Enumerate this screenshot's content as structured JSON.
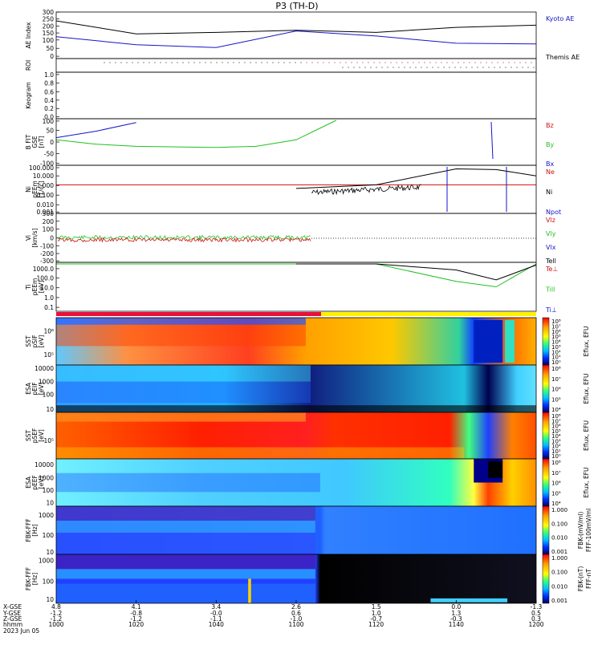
{
  "title": "P3 (TH-D)",
  "colors": {
    "kyoto": "#1515c8",
    "themis": "#000000",
    "bz": "#e01010",
    "by": "#20c020",
    "bx": "#1515c8",
    "ne": "#d01010",
    "ni": "#000000",
    "npot": "#1515c8",
    "vlz": "#d01010",
    "vly": "#20c020",
    "vlx": "#1515c8",
    "bar_red": "#e8103a",
    "bar_yellow": "#fff200"
  },
  "panels": [
    {
      "id": "ae",
      "ylabel": [
        "AE Index"
      ],
      "ticks": [
        "300",
        "250",
        "200",
        "150",
        "100",
        "50",
        "0"
      ],
      "legend": [
        {
          "text": "Kyoto AE",
          "color": "#1515c8"
        },
        {
          "text": "Themis AE",
          "color": "#000000"
        }
      ]
    },
    {
      "id": "roi",
      "ylabel": [
        "ROI"
      ],
      "ticks": [],
      "legend": []
    },
    {
      "id": "keogram",
      "ylabel": [
        "Keogram"
      ],
      "ticks": [
        "1.0",
        "0.8",
        "0.6",
        "0.4",
        "0.2",
        "0.0"
      ],
      "legend": []
    },
    {
      "id": "bfield",
      "ylabel": [
        "B FIT",
        "GSE",
        "[nT]"
      ],
      "ticks": [
        "100",
        "50",
        "0",
        "-50",
        "-100"
      ],
      "legend": [
        {
          "text": "Bz",
          "color": "#d01010"
        },
        {
          "text": "By",
          "color": "#20c020"
        },
        {
          "text": "Bx",
          "color": "#1515c8"
        }
      ]
    },
    {
      "id": "dens",
      "ylabel": [
        "Ni",
        "pEEm",
        "[1/cc]"
      ],
      "ticks": [
        "100.000",
        "10.000",
        "1.000",
        "0.100",
        "0.010",
        "0.001"
      ],
      "legend": [
        {
          "text": "Ne",
          "color": "#d01010"
        },
        {
          "text": "Ni",
          "color": "#000000"
        },
        {
          "text": "Npot",
          "color": "#1515c8"
        }
      ]
    },
    {
      "id": "vel",
      "ylabel": [
        "Vi",
        "[km/s]"
      ],
      "ticks": [
        "300",
        "200",
        "100",
        "0",
        "-100",
        "-200",
        "-300"
      ],
      "legend": [
        {
          "text": "Vlz",
          "color": "#d01010"
        },
        {
          "text": "Vly",
          "color": "#20c020"
        },
        {
          "text": "Vlx",
          "color": "#1515c8"
        },
        {
          "text": "Tell",
          "color": "#000000"
        }
      ]
    },
    {
      "id": "temp",
      "ylabel": [
        "Ti",
        "pEEm",
        "[eV]"
      ],
      "ticks": [
        "1000.0",
        "100.0",
        "10.0",
        "1.0",
        "0.1"
      ],
      "legend": [
        {
          "text": "Te⊥",
          "color": "#d01010"
        },
        {
          "text": "Till",
          "color": "#20c020"
        },
        {
          "text": "Ti⊥",
          "color": "#1515c8"
        }
      ]
    },
    {
      "id": "sst_i",
      "ylabel": [
        "SST",
        "pSIF",
        "[eV]"
      ],
      "ticks": [
        "10⁶",
        "10⁵"
      ],
      "legend": []
    },
    {
      "id": "esa_i",
      "ylabel": [
        "ESA",
        "pEIF",
        "[eV]"
      ],
      "ticks": [
        "10000",
        "1000",
        "100",
        "10"
      ],
      "legend": []
    },
    {
      "id": "sst_e",
      "ylabel": [
        "SST",
        "pSEF",
        "[eV]"
      ],
      "ticks": [
        "10⁵"
      ],
      "legend": []
    },
    {
      "id": "esa_e",
      "ylabel": [
        "ESA",
        "pEEF",
        "[eV]"
      ],
      "ticks": [
        "10000",
        "1000",
        "100",
        "10"
      ],
      "legend": []
    },
    {
      "id": "fbk1",
      "ylabel": [
        "FBK-FFF",
        "[Hz]"
      ],
      "ticks": [
        "1000",
        "100",
        "10"
      ],
      "legend": []
    },
    {
      "id": "fbk2",
      "ylabel": [
        "FBK-FFF",
        "[Hz]"
      ],
      "ticks": [
        "1000",
        "100",
        "10"
      ],
      "legend": []
    }
  ],
  "colorbars": [
    {
      "label": "Eflux, EFU",
      "ticks": [
        "10⁸",
        "10⁷",
        "10⁶",
        "10⁵",
        "10⁴",
        "10³",
        "10²",
        "10¹",
        "10⁰"
      ]
    },
    {
      "label": "Eflux, EFU",
      "ticks": [
        "10⁸",
        "10⁷",
        "10⁶",
        "10⁵",
        "10⁴"
      ]
    },
    {
      "label": "Eflux, EFU",
      "ticks": [
        "10⁸",
        "10⁷",
        "10⁶",
        "10⁵",
        "10⁴",
        "10³",
        "10²",
        "10¹",
        "10⁰"
      ]
    },
    {
      "label": "Eflux, EFU",
      "ticks": [
        "10⁸",
        "10⁷",
        "10⁶",
        "10⁵",
        "10⁴"
      ]
    },
    {
      "label": "FFF-100mV/ml",
      "label2": "FBK-(mV/ml)",
      "ticks": [
        "1.000",
        "0.100",
        "0.010",
        "0.001"
      ]
    },
    {
      "label": "FFF-nT",
      "label2": "FBK-(nT)",
      "ticks": [
        "1.000",
        "0.100",
        "0.010",
        "0.001"
      ]
    }
  ],
  "axis": {
    "row_labels": [
      "X-GSE",
      "Y-GSE",
      "Z-GSE",
      "hhmm",
      "2023 Jun 05"
    ],
    "columns": [
      {
        "x": "4.8",
        "y": "-1.2",
        "z": "-1.2",
        "t": "1000"
      },
      {
        "x": "4.1",
        "y": "-0.8",
        "z": "-1.2",
        "t": "1020"
      },
      {
        "x": "3.4",
        "y": "-0.0",
        "z": "-1.1",
        "t": "1040"
      },
      {
        "x": "2.6",
        "y": "0.6",
        "z": "-1.0",
        "t": "1100"
      },
      {
        "x": "1.5",
        "y": "1.0",
        "z": "-0.7",
        "t": "1120"
      },
      {
        "x": "0.0",
        "y": "1.3",
        "z": "-0.3",
        "t": "1140"
      },
      {
        "x": "-1.3",
        "y": "0.5",
        "z": "0.3",
        "t": "1200"
      }
    ]
  },
  "chart_data": [
    {
      "type": "line",
      "title": "P3 (TH-D)",
      "ylabel": "AE Index",
      "ylim": [
        0,
        300
      ],
      "x": [
        "1000",
        "1020",
        "1040",
        "1100",
        "1120",
        "1140",
        "1200"
      ],
      "series": [
        {
          "name": "Themis AE",
          "values": [
            250,
            160,
            170,
            185,
            170,
            205,
            220
          ]
        },
        {
          "name": "Kyoto AE",
          "values": [
            140,
            85,
            65,
            180,
            145,
            95,
            90
          ]
        }
      ]
    },
    {
      "type": "line",
      "ylabel": "B FIT GSE [nT]",
      "ylim": [
        -100,
        100
      ],
      "x": [
        "1000",
        "1010",
        "1020",
        "1040",
        "1050",
        "1100",
        "1110"
      ],
      "series": [
        {
          "name": "Bx",
          "values": [
            20,
            50,
            90,
            null,
            null,
            null,
            null
          ]
        },
        {
          "name": "By",
          "values": [
            10,
            -10,
            -20,
            -25,
            -20,
            10,
            100
          ]
        }
      ]
    },
    {
      "type": "line",
      "ylabel": "Ni pEEm [1/cc]",
      "scale": "log",
      "ylim": [
        0.001,
        100
      ],
      "x": [
        "1000",
        "1030",
        "1100",
        "1120",
        "1140",
        "1150",
        "1200"
      ],
      "series": [
        {
          "name": "Ne",
          "values": [
            1.0,
            1.0,
            1.0,
            1.0,
            1.0,
            1.0,
            1.0
          ]
        },
        {
          "name": "Ni",
          "values": [
            null,
            null,
            0.4,
            1.0,
            60,
            50,
            10
          ]
        }
      ]
    },
    {
      "type": "line",
      "ylabel": "Ti pEEm [eV]",
      "scale": "log",
      "ylim": [
        0.1,
        1000
      ],
      "x": [
        "1000",
        "1030",
        "1100",
        "1120",
        "1140",
        "1150",
        "1200"
      ],
      "series": [
        {
          "name": "Till",
          "values": [
            1000,
            1000,
            1000,
            1000,
            30,
            10,
            1000
          ]
        },
        {
          "name": "Te⊥",
          "values": [
            null,
            null,
            1000,
            1000,
            300,
            40,
            800
          ]
        }
      ]
    }
  ]
}
